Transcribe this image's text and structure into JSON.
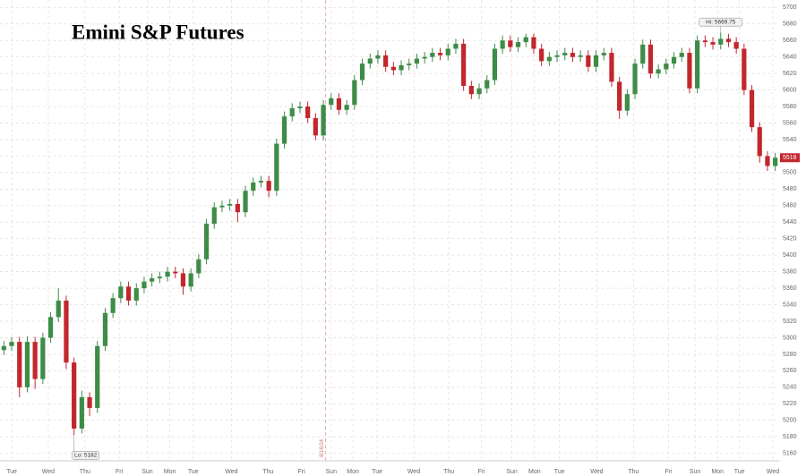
{
  "chart_data": {
    "type": "candlestick",
    "title": "Emini S&P Futures",
    "colors": {
      "up": "#3d8c47",
      "down": "#c2272d"
    },
    "x": [
      0,
      1,
      2,
      3,
      4,
      5,
      6,
      7,
      8,
      9,
      10,
      11,
      12,
      13,
      14,
      15,
      16,
      17,
      18,
      19,
      20,
      21,
      22,
      23,
      24,
      25,
      26,
      27,
      28,
      29,
      30,
      31,
      32,
      33,
      34,
      35,
      36,
      37,
      38,
      39,
      40,
      41,
      42,
      43,
      44,
      45,
      46,
      47,
      48,
      49,
      50,
      51,
      52,
      53,
      54,
      55,
      56,
      57,
      58,
      59,
      60,
      61,
      62,
      63,
      64,
      65,
      66,
      67,
      68,
      69,
      70,
      71,
      72,
      73,
      74,
      75,
      76,
      77,
      78,
      79,
      80,
      81,
      82,
      83,
      84,
      85,
      86,
      87,
      88,
      89,
      90,
      91,
      92,
      93,
      94,
      95,
      96,
      97,
      98,
      99
    ],
    "open": [
      5285,
      5290,
      5295,
      5240,
      5295,
      5250,
      5300,
      5325,
      5345,
      5270,
      5190,
      5228,
      5215,
      5290,
      5330,
      5348,
      5362,
      5345,
      5360,
      5368,
      5372,
      5374,
      5380,
      5378,
      5362,
      5378,
      5395,
      5438,
      5458,
      5460,
      5462,
      5452,
      5478,
      5488,
      5490,
      5478,
      5535,
      5568,
      5578,
      5580,
      5566,
      5545,
      5582,
      5590,
      5576,
      5582,
      5612,
      5632,
      5638,
      5642,
      5628,
      5624,
      5630,
      5632,
      5638,
      5640,
      5645,
      5642,
      5650,
      5656,
      5605,
      5595,
      5602,
      5612,
      5650,
      5660,
      5652,
      5658,
      5664,
      5650,
      5635,
      5640,
      5642,
      5645,
      5640,
      5642,
      5628,
      5642,
      5645,
      5610,
      5575,
      5595,
      5632,
      5655,
      5620,
      5625,
      5632,
      5640,
      5645,
      5602,
      5660,
      5658,
      5655,
      5662,
      5658,
      5650,
      5600,
      5555,
      5520,
      5508
    ],
    "high": [
      5296,
      5301,
      5301,
      5302,
      5301,
      5306,
      5331,
      5360,
      5351,
      5276,
      5236,
      5234,
      5296,
      5336,
      5354,
      5368,
      5368,
      5366,
      5374,
      5378,
      5380,
      5386,
      5386,
      5384,
      5384,
      5401,
      5444,
      5464,
      5466,
      5468,
      5468,
      5484,
      5494,
      5496,
      5496,
      5541,
      5574,
      5584,
      5586,
      5586,
      5572,
      5588,
      5596,
      5596,
      5588,
      5618,
      5638,
      5644,
      5648,
      5648,
      5634,
      5636,
      5638,
      5644,
      5646,
      5651,
      5651,
      5656,
      5662,
      5662,
      5611,
      5608,
      5618,
      5656,
      5666,
      5666,
      5664,
      5668,
      5668,
      5656,
      5646,
      5648,
      5651,
      5651,
      5648,
      5648,
      5648,
      5651,
      5651,
      5616,
      5601,
      5638,
      5661,
      5661,
      5631,
      5638,
      5646,
      5651,
      5651,
      5666,
      5666,
      5664,
      5669.75,
      5668,
      5664,
      5656,
      5606,
      5561,
      5526,
      5524
    ],
    "low": [
      5279,
      5284,
      5228,
      5234,
      5238,
      5244,
      5294,
      5319,
      5262,
      5182,
      5184,
      5205,
      5209,
      5284,
      5324,
      5342,
      5339,
      5339,
      5354,
      5362,
      5366,
      5368,
      5372,
      5352,
      5356,
      5372,
      5389,
      5432,
      5452,
      5454,
      5440,
      5446,
      5472,
      5482,
      5470,
      5472,
      5529,
      5562,
      5572,
      5560,
      5539,
      5539,
      5576,
      5570,
      5570,
      5576,
      5606,
      5626,
      5632,
      5622,
      5618,
      5618,
      5624,
      5626,
      5632,
      5634,
      5636,
      5636,
      5644,
      5599,
      5589,
      5589,
      5596,
      5606,
      5644,
      5646,
      5646,
      5652,
      5644,
      5629,
      5629,
      5634,
      5636,
      5634,
      5634,
      5622,
      5622,
      5636,
      5604,
      5565,
      5569,
      5589,
      5626,
      5614,
      5614,
      5619,
      5626,
      5634,
      5596,
      5596,
      5652,
      5649,
      5649,
      5652,
      5644,
      5594,
      5549,
      5512,
      5502,
      5502
    ],
    "close": [
      5290,
      5295,
      5240,
      5295,
      5250,
      5300,
      5325,
      5345,
      5270,
      5190,
      5228,
      5215,
      5290,
      5330,
      5348,
      5362,
      5345,
      5360,
      5368,
      5372,
      5374,
      5380,
      5378,
      5362,
      5378,
      5395,
      5438,
      5458,
      5460,
      5462,
      5452,
      5478,
      5488,
      5490,
      5478,
      5535,
      5568,
      5578,
      5580,
      5566,
      5545,
      5582,
      5590,
      5576,
      5582,
      5612,
      5632,
      5638,
      5642,
      5628,
      5624,
      5630,
      5632,
      5638,
      5640,
      5645,
      5642,
      5650,
      5656,
      5605,
      5595,
      5602,
      5612,
      5650,
      5660,
      5652,
      5658,
      5664,
      5650,
      5635,
      5640,
      5642,
      5645,
      5640,
      5642,
      5628,
      5642,
      5645,
      5610,
      5575,
      5595,
      5632,
      5655,
      5620,
      5625,
      5632,
      5640,
      5645,
      5602,
      5660,
      5658,
      5655,
      5662,
      5658,
      5650,
      5600,
      5555,
      5520,
      5508,
      5518
    ],
    "xlim": [
      -0.5,
      99.5
    ],
    "xticks": [
      {
        "value": 1.0,
        "label": "Tue"
      },
      {
        "value": 5.7,
        "label": "Wed"
      },
      {
        "value": 10.4,
        "label": "Thu"
      },
      {
        "value": 14.8,
        "label": "Fri"
      },
      {
        "value": 18.4,
        "label": "Sun"
      },
      {
        "value": 21.3,
        "label": "Mon"
      },
      {
        "value": 24.3,
        "label": "Tue"
      },
      {
        "value": 29.2,
        "label": "Wed"
      },
      {
        "value": 33.9,
        "label": "Thu"
      },
      {
        "value": 38.2,
        "label": "Fri"
      },
      {
        "value": 42.0,
        "label": "Sun"
      },
      {
        "value": 44.8,
        "label": "Mon"
      },
      {
        "value": 47.9,
        "label": "Tue"
      },
      {
        "value": 52.6,
        "label": "Wed"
      },
      {
        "value": 57.1,
        "label": "Thu"
      },
      {
        "value": 61.3,
        "label": "Fri"
      },
      {
        "value": 65.2,
        "label": "Sun"
      },
      {
        "value": 68.1,
        "label": "Mon"
      },
      {
        "value": 71.3,
        "label": "Tue"
      },
      {
        "value": 76.1,
        "label": "Wed"
      },
      {
        "value": 80.8,
        "label": "Thu"
      },
      {
        "value": 85.3,
        "label": "Fri"
      },
      {
        "value": 88.7,
        "label": "Sun"
      },
      {
        "value": 91.6,
        "label": "Mon"
      },
      {
        "value": 94.4,
        "label": "Tue"
      },
      {
        "value": 98.7,
        "label": "Wed"
      }
    ],
    "ylim": [
      5151,
      5709
    ],
    "yticks": [
      5160,
      5180,
      5200,
      5220,
      5240,
      5260,
      5280,
      5300,
      5320,
      5340,
      5360,
      5380,
      5400,
      5420,
      5440,
      5460,
      5480,
      5500,
      5520,
      5540,
      5560,
      5580,
      5600,
      5620,
      5640,
      5660,
      5680,
      5700
    ],
    "grid": true,
    "high_label": "Hi: 5669.75",
    "low_label": "Lo: 5182",
    "last_price_label": "5518",
    "date_marker": {
      "label": "8/16/24",
      "x": 41.3
    }
  }
}
